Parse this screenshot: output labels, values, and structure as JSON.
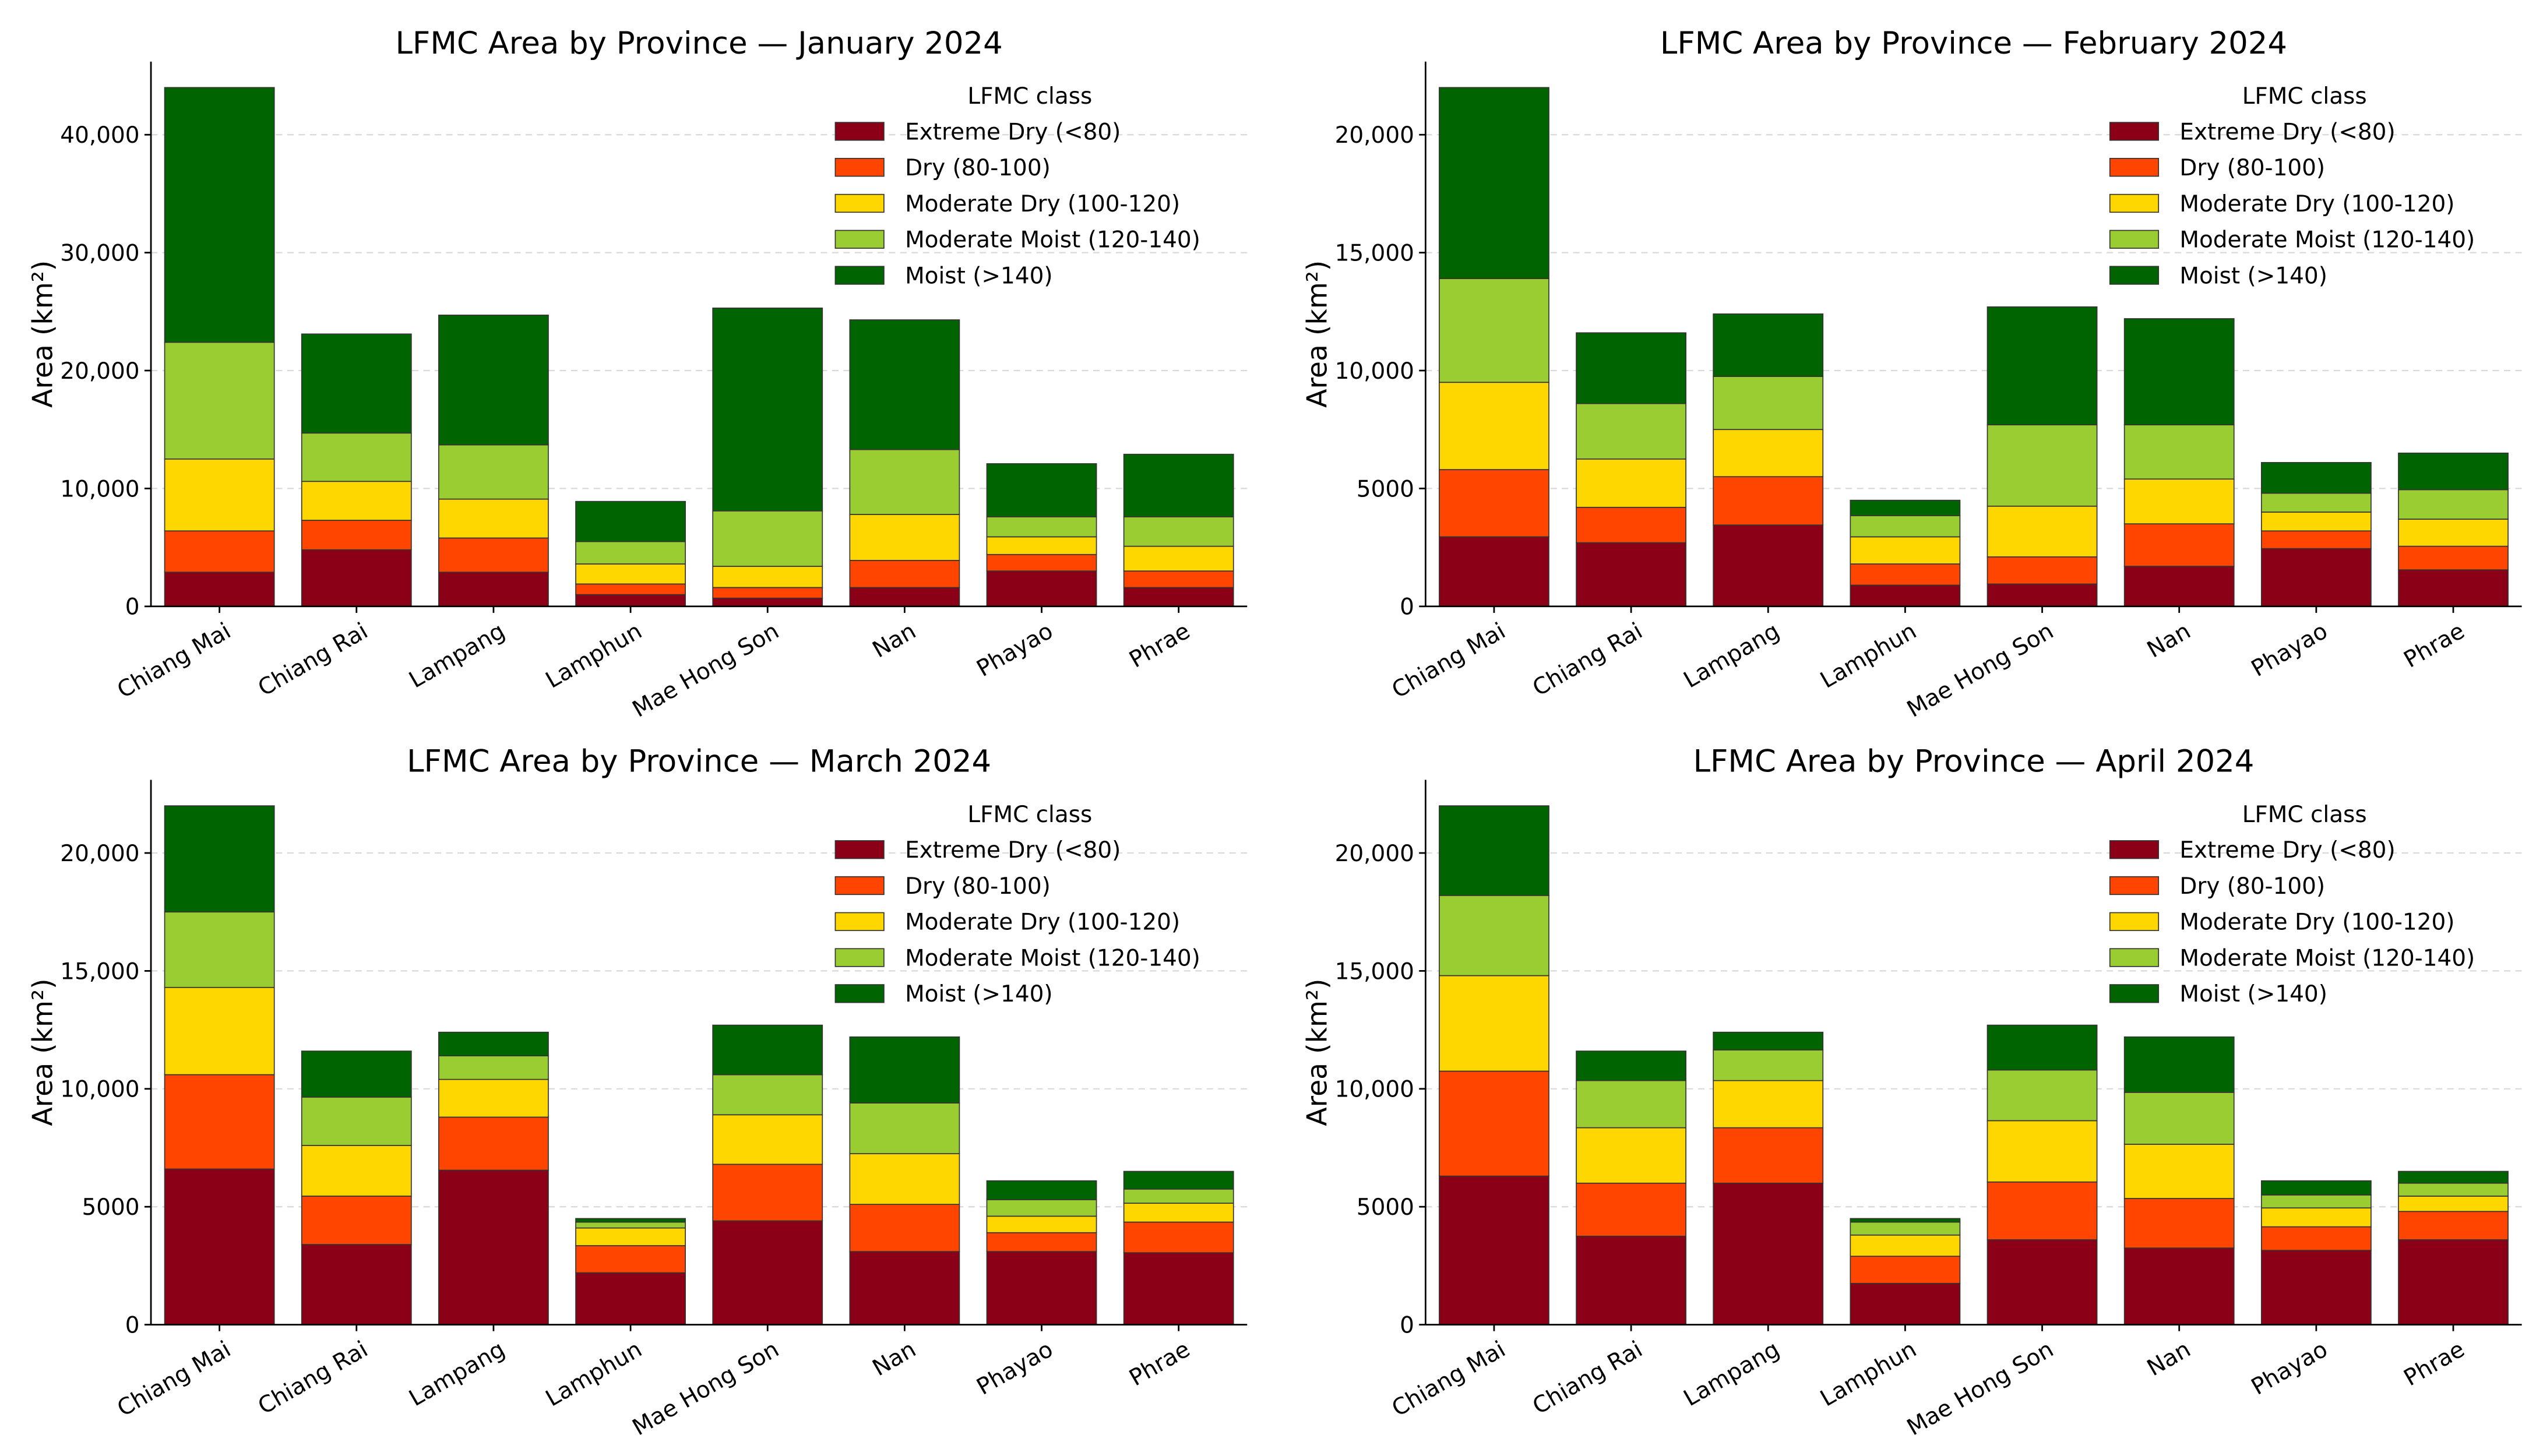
{
  "chart_data": [
    {
      "type": "bar",
      "stacked": true,
      "title": "LFMC Area by Province — January 2024",
      "ylabel": "Area (km²)",
      "xlabel": "",
      "ylim": [
        0,
        46200
      ],
      "yticks": [
        0,
        10000,
        20000,
        30000,
        40000
      ],
      "ytick_labels": [
        "0",
        "10,000",
        "20,000",
        "30,000",
        "40,000"
      ],
      "categories": [
        "Chiang Mai",
        "Chiang Rai",
        "Lampang",
        "Lamphun",
        "Mae Hong Son",
        "Nan",
        "Phayao",
        "Phrae"
      ],
      "series": [
        {
          "name": "Extreme Dry (<80)",
          "values": [
            2900,
            4800,
            2900,
            1000,
            700,
            1600,
            3000,
            1600
          ]
        },
        {
          "name": "Dry (80-100)",
          "values": [
            3500,
            2500,
            2900,
            900,
            900,
            2300,
            1400,
            1400
          ]
        },
        {
          "name": "Moderate Dry (100-120)",
          "values": [
            6100,
            3300,
            3300,
            1700,
            1800,
            3900,
            1500,
            2100
          ]
        },
        {
          "name": "Moderate Moist (120-140)",
          "values": [
            9900,
            4100,
            4600,
            1900,
            4700,
            5500,
            1700,
            2500
          ]
        },
        {
          "name": "Moist (>140)",
          "values": [
            21600,
            8400,
            11000,
            3400,
            17200,
            11000,
            4500,
            5300
          ]
        }
      ],
      "legend_title": "LFMC class",
      "legend_position": "top-right",
      "grid": "y-dashed"
    },
    {
      "type": "bar",
      "stacked": true,
      "title": "LFMC Area by Province — February 2024",
      "ylabel": "Area (km²)",
      "xlabel": "",
      "ylim": [
        0,
        23100
      ],
      "yticks": [
        0,
        5000,
        10000,
        15000,
        20000
      ],
      "ytick_labels": [
        "0",
        "5000",
        "10,000",
        "15,000",
        "20,000"
      ],
      "categories": [
        "Chiang Mai",
        "Chiang Rai",
        "Lampang",
        "Lamphun",
        "Mae Hong Son",
        "Nan",
        "Phayao",
        "Phrae"
      ],
      "series": [
        {
          "name": "Extreme Dry (<80)",
          "values": [
            2950,
            2700,
            3450,
            900,
            950,
            1700,
            2450,
            1550
          ]
        },
        {
          "name": "Dry (80-100)",
          "values": [
            2850,
            1500,
            2050,
            900,
            1150,
            1800,
            750,
            1000
          ]
        },
        {
          "name": "Moderate Dry (100-120)",
          "values": [
            3700,
            2050,
            2000,
            1150,
            2150,
            1900,
            800,
            1150
          ]
        },
        {
          "name": "Moderate Moist (120-140)",
          "values": [
            4400,
            2350,
            2250,
            900,
            3450,
            2300,
            800,
            1250
          ]
        },
        {
          "name": "Moist (>140)",
          "values": [
            8100,
            3000,
            2650,
            650,
            5000,
            4500,
            1300,
            1550
          ]
        }
      ],
      "legend_title": "LFMC class",
      "legend_position": "top-right",
      "grid": "y-dashed"
    },
    {
      "type": "bar",
      "stacked": true,
      "title": "LFMC Area by Province — March 2024",
      "ylabel": "Area (km²)",
      "xlabel": "",
      "ylim": [
        0,
        23100
      ],
      "yticks": [
        0,
        5000,
        10000,
        15000,
        20000
      ],
      "ytick_labels": [
        "0",
        "5000",
        "10,000",
        "15,000",
        "20,000"
      ],
      "categories": [
        "Chiang Mai",
        "Chiang Rai",
        "Lampang",
        "Lamphun",
        "Mae Hong Son",
        "Nan",
        "Phayao",
        "Phrae"
      ],
      "series": [
        {
          "name": "Extreme Dry (<80)",
          "values": [
            6600,
            3400,
            6550,
            2200,
            4400,
            3100,
            3100,
            3050
          ]
        },
        {
          "name": "Dry (80-100)",
          "values": [
            4000,
            2050,
            2250,
            1150,
            2400,
            2000,
            800,
            1300
          ]
        },
        {
          "name": "Moderate Dry (100-120)",
          "values": [
            3700,
            2150,
            1600,
            750,
            2100,
            2150,
            700,
            800
          ]
        },
        {
          "name": "Moderate Moist (120-140)",
          "values": [
            3200,
            2050,
            1000,
            250,
            1700,
            2150,
            700,
            600
          ]
        },
        {
          "name": "Moist (>140)",
          "values": [
            4500,
            1950,
            1000,
            150,
            2100,
            2800,
            800,
            750
          ]
        }
      ],
      "legend_title": "LFMC class",
      "legend_position": "top-right",
      "grid": "y-dashed"
    },
    {
      "type": "bar",
      "stacked": true,
      "title": "LFMC Area by Province — April 2024",
      "ylabel": "Area (km²)",
      "xlabel": "",
      "ylim": [
        0,
        23100
      ],
      "yticks": [
        0,
        5000,
        10000,
        15000,
        20000
      ],
      "ytick_labels": [
        "0",
        "5000",
        "10,000",
        "15,000",
        "20,000"
      ],
      "categories": [
        "Chiang Mai",
        "Chiang Rai",
        "Lampang",
        "Lamphun",
        "Mae Hong Son",
        "Nan",
        "Phayao",
        "Phrae"
      ],
      "series": [
        {
          "name": "Extreme Dry (<80)",
          "values": [
            6300,
            3750,
            6000,
            1750,
            3600,
            3250,
            3150,
            3600
          ]
        },
        {
          "name": "Dry (80-100)",
          "values": [
            4450,
            2250,
            2350,
            1150,
            2450,
            2100,
            1000,
            1200
          ]
        },
        {
          "name": "Moderate Dry (100-120)",
          "values": [
            4050,
            2350,
            2000,
            900,
            2600,
            2300,
            800,
            650
          ]
        },
        {
          "name": "Moderate Moist (120-140)",
          "values": [
            3400,
            2000,
            1300,
            550,
            2150,
            2200,
            550,
            550
          ]
        },
        {
          "name": "Moist (>140)",
          "values": [
            3800,
            1250,
            750,
            150,
            1900,
            2350,
            600,
            500
          ]
        }
      ],
      "legend_title": "LFMC class",
      "legend_position": "top-right",
      "grid": "y-dashed"
    }
  ],
  "colors": {
    "Extreme Dry (<80)": "#8b0016",
    "Dry (80-100)": "#ff4500",
    "Moderate Dry (100-120)": "#ffd700",
    "Moderate Moist (120-140)": "#9acd32",
    "Moist (>140)": "#006400"
  }
}
